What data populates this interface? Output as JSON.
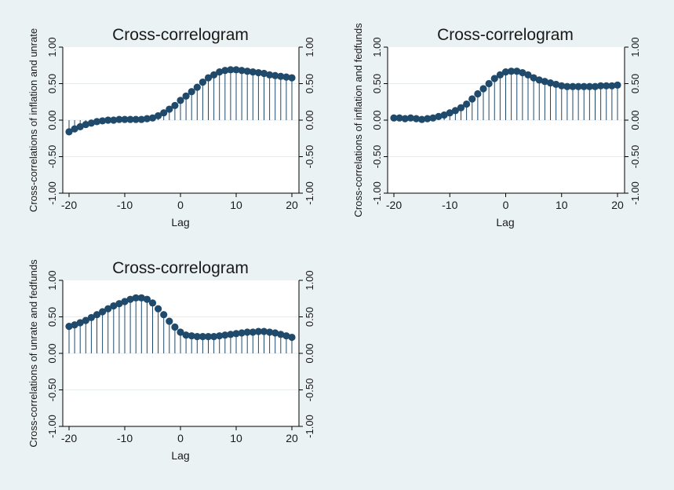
{
  "window": {
    "background": "#eaf2f3",
    "plot_background": "#ffffff"
  },
  "marker_color": "#1f4a6b",
  "stem_color": "#1f4a6b",
  "gridline_color": "#e6ecee",
  "chart_data": [
    {
      "type": "scatter",
      "title": "Cross-correlogram",
      "xlabel": "Lag",
      "ylabel": "Cross-correlations of inflation and unrate",
      "xlim": [
        -20,
        20
      ],
      "ylim": [
        -1,
        1
      ],
      "x_ticks": [
        -20,
        -10,
        0,
        10,
        20
      ],
      "y_ticks": [
        -1,
        -0.5,
        0,
        0.5,
        1
      ],
      "y_tick_labels": [
        "-1.00",
        "-0.50",
        "0.00",
        "0.50",
        "1.00"
      ],
      "right_axis_mirror": true,
      "grid": true,
      "x": [
        -20,
        -19,
        -18,
        -17,
        -16,
        -15,
        -14,
        -13,
        -12,
        -11,
        -10,
        -9,
        -8,
        -7,
        -6,
        -5,
        -4,
        -3,
        -2,
        -1,
        0,
        1,
        2,
        3,
        4,
        5,
        6,
        7,
        8,
        9,
        10,
        11,
        12,
        13,
        14,
        15,
        16,
        17,
        18,
        19,
        20
      ],
      "values": [
        -0.16,
        -0.12,
        -0.09,
        -0.06,
        -0.04,
        -0.02,
        -0.01,
        0,
        0,
        0.01,
        0.01,
        0.01,
        0.01,
        0.01,
        0.02,
        0.03,
        0.06,
        0.1,
        0.15,
        0.2,
        0.27,
        0.33,
        0.39,
        0.45,
        0.52,
        0.58,
        0.62,
        0.66,
        0.68,
        0.69,
        0.69,
        0.68,
        0.67,
        0.66,
        0.65,
        0.64,
        0.62,
        0.61,
        0.6,
        0.59,
        0.58
      ]
    },
    {
      "type": "scatter",
      "title": "Cross-correlogram",
      "xlabel": "Lag",
      "ylabel": "Cross-correlations of inflation and fedfunds",
      "xlim": [
        -20,
        20
      ],
      "ylim": [
        -1,
        1
      ],
      "x_ticks": [
        -20,
        -10,
        0,
        10,
        20
      ],
      "y_ticks": [
        -1,
        -0.5,
        0,
        0.5,
        1
      ],
      "y_tick_labels": [
        "-1.00",
        "-0.50",
        "0.00",
        "0.50",
        "1.00"
      ],
      "right_axis_mirror": true,
      "grid": true,
      "x": [
        -20,
        -19,
        -18,
        -17,
        -16,
        -15,
        -14,
        -13,
        -12,
        -11,
        -10,
        -9,
        -8,
        -7,
        -6,
        -5,
        -4,
        -3,
        -2,
        -1,
        0,
        1,
        2,
        3,
        4,
        5,
        6,
        7,
        8,
        9,
        10,
        11,
        12,
        13,
        14,
        15,
        16,
        17,
        18,
        19,
        20
      ],
      "values": [
        0.03,
        0.03,
        0.02,
        0.03,
        0.02,
        0.01,
        0.02,
        0.03,
        0.05,
        0.07,
        0.1,
        0.13,
        0.17,
        0.22,
        0.29,
        0.36,
        0.43,
        0.5,
        0.57,
        0.62,
        0.66,
        0.67,
        0.67,
        0.65,
        0.62,
        0.58,
        0.55,
        0.53,
        0.51,
        0.49,
        0.47,
        0.46,
        0.46,
        0.46,
        0.46,
        0.46,
        0.46,
        0.47,
        0.47,
        0.47,
        0.48
      ]
    },
    {
      "type": "scatter",
      "title": "Cross-correlogram",
      "xlabel": "Lag",
      "ylabel": "Cross-correlations of unrate and fedfunds",
      "xlim": [
        -20,
        20
      ],
      "ylim": [
        -1,
        1
      ],
      "x_ticks": [
        -20,
        -10,
        0,
        10,
        20
      ],
      "y_ticks": [
        -1,
        -0.5,
        0,
        0.5,
        1
      ],
      "y_tick_labels": [
        "-1.00",
        "-0.50",
        "0.00",
        "0.50",
        "1.00"
      ],
      "right_axis_mirror": true,
      "grid": true,
      "x": [
        -20,
        -19,
        -18,
        -17,
        -16,
        -15,
        -14,
        -13,
        -12,
        -11,
        -10,
        -9,
        -8,
        -7,
        -6,
        -5,
        -4,
        -3,
        -2,
        -1,
        0,
        1,
        2,
        3,
        4,
        5,
        6,
        7,
        8,
        9,
        10,
        11,
        12,
        13,
        14,
        15,
        16,
        17,
        18,
        19,
        20
      ],
      "values": [
        0.37,
        0.39,
        0.42,
        0.45,
        0.49,
        0.53,
        0.57,
        0.61,
        0.65,
        0.68,
        0.71,
        0.74,
        0.76,
        0.76,
        0.74,
        0.69,
        0.61,
        0.53,
        0.44,
        0.36,
        0.29,
        0.25,
        0.24,
        0.23,
        0.23,
        0.23,
        0.23,
        0.24,
        0.25,
        0.26,
        0.27,
        0.28,
        0.29,
        0.29,
        0.3,
        0.3,
        0.29,
        0.28,
        0.26,
        0.24,
        0.22
      ]
    }
  ]
}
